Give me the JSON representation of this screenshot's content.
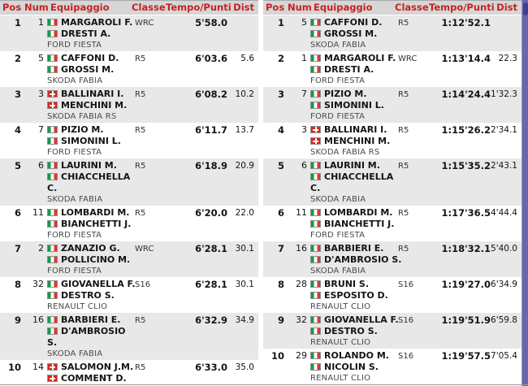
{
  "colors": {
    "header_bg": "#d6d6d6",
    "header_text": "#c5221f",
    "zebra_row_bg": "#e8e8e8",
    "car_text": "#4a4a4a",
    "scroll_strip": "#6767ad",
    "scroll_thumb": "#3f3f90",
    "italy_green": "#0f9b4a",
    "italy_red": "#d8372f",
    "swiss_red": "#d8291c"
  },
  "tables": [
    {
      "name": "stage-results-left",
      "headers": {
        "pos": "Pos",
        "num": "Num",
        "crew": "Equipaggio",
        "classe": "Classe",
        "time": "Tempo/Punti",
        "dist": "Dist"
      },
      "rows": [
        {
          "pos": "1",
          "num": "1",
          "drivers": [
            {
              "flag": "it",
              "lines": [
                "MARGAROLI F."
              ]
            },
            {
              "flag": "it",
              "lines": [
                "DRESTI A."
              ]
            }
          ],
          "car": "FORD FIESTA",
          "classe": "WRC",
          "time": "5'58.0",
          "dist": ""
        },
        {
          "pos": "2",
          "num": "5",
          "drivers": [
            {
              "flag": "it",
              "lines": [
                "CAFFONI D."
              ]
            },
            {
              "flag": "it",
              "lines": [
                "GROSSI M."
              ]
            }
          ],
          "car": "SKODA FABIA",
          "classe": "R5",
          "time": "6'03.6",
          "dist": "5.6"
        },
        {
          "pos": "3",
          "num": "3",
          "drivers": [
            {
              "flag": "ch",
              "lines": [
                "BALLINARI I."
              ]
            },
            {
              "flag": "ch",
              "lines": [
                "MENCHINI M."
              ]
            }
          ],
          "car": "SKODA FABIA RS",
          "classe": "R5",
          "time": "6'08.2",
          "dist": "10.2"
        },
        {
          "pos": "4",
          "num": "7",
          "drivers": [
            {
              "flag": "it",
              "lines": [
                "PIZIO M."
              ]
            },
            {
              "flag": "it",
              "lines": [
                "SIMONINI L."
              ]
            }
          ],
          "car": "FORD FIESTA",
          "classe": "R5",
          "time": "6'11.7",
          "dist": "13.7"
        },
        {
          "pos": "5",
          "num": "6",
          "drivers": [
            {
              "flag": "it",
              "lines": [
                "LAURINI M."
              ]
            },
            {
              "flag": "it",
              "lines": [
                "CHIACCHELLA",
                "C."
              ]
            }
          ],
          "car": "SKODA FABIA",
          "classe": "R5",
          "time": "6'18.9",
          "dist": "20.9"
        },
        {
          "pos": "6",
          "num": "11",
          "drivers": [
            {
              "flag": "it",
              "lines": [
                "LOMBARDI M."
              ]
            },
            {
              "flag": "it",
              "lines": [
                "BIANCHETTI J."
              ]
            }
          ],
          "car": "FORD FIESTA",
          "classe": "R5",
          "time": "6'20.0",
          "dist": "22.0"
        },
        {
          "pos": "7",
          "num": "2",
          "drivers": [
            {
              "flag": "it",
              "lines": [
                "ZANAZIO G."
              ]
            },
            {
              "flag": "it",
              "lines": [
                "POLLICINO M."
              ]
            }
          ],
          "car": "FORD FIESTA",
          "classe": "WRC",
          "time": "6'28.1",
          "dist": "30.1"
        },
        {
          "pos": "8",
          "num": "32",
          "drivers": [
            {
              "flag": "it",
              "lines": [
                "GIOVANELLA F."
              ]
            },
            {
              "flag": "it",
              "lines": [
                "DESTRO S."
              ]
            }
          ],
          "car": "RENAULT CLIO",
          "classe": "S16",
          "time": "6'28.1",
          "dist": "30.1"
        },
        {
          "pos": "9",
          "num": "16",
          "drivers": [
            {
              "flag": "it",
              "lines": [
                "BARBIERI E."
              ]
            },
            {
              "flag": "it",
              "lines": [
                "D'AMBROSIO",
                "S."
              ]
            }
          ],
          "car": "SKODA FABIA",
          "classe": "R5",
          "time": "6'32.9",
          "dist": "34.9"
        },
        {
          "pos": "10",
          "num": "14",
          "drivers": [
            {
              "flag": "ch",
              "lines": [
                "SALOMON J.M."
              ]
            },
            {
              "flag": "ch",
              "lines": [
                "COMMENT D."
              ]
            }
          ],
          "car": "",
          "classe": "R5",
          "time": "6'33.0",
          "dist": "35.0"
        }
      ]
    },
    {
      "name": "overall-results-right",
      "headers": {
        "pos": "Pos",
        "num": "Num",
        "crew": "Equipaggio",
        "classe": "Classe",
        "time": "Tempo/Punti",
        "dist": "Dist"
      },
      "rows": [
        {
          "pos": "1",
          "num": "5",
          "drivers": [
            {
              "flag": "it",
              "lines": [
                "CAFFONI D."
              ]
            },
            {
              "flag": "it",
              "lines": [
                "GROSSI M."
              ]
            }
          ],
          "car": "SKODA FABIA",
          "classe": "R5",
          "time": "1:12'52.1",
          "dist": ""
        },
        {
          "pos": "2",
          "num": "1",
          "drivers": [
            {
              "flag": "it",
              "lines": [
                "MARGAROLI F."
              ]
            },
            {
              "flag": "it",
              "lines": [
                "DRESTI A."
              ]
            }
          ],
          "car": "FORD FIESTA",
          "classe": "WRC",
          "time": "1:13'14.4",
          "dist": "22.3"
        },
        {
          "pos": "3",
          "num": "7",
          "drivers": [
            {
              "flag": "it",
              "lines": [
                "PIZIO M."
              ]
            },
            {
              "flag": "it",
              "lines": [
                "SIMONINI L."
              ]
            }
          ],
          "car": "FORD FIESTA",
          "classe": "R5",
          "time": "1:14'24.4",
          "dist": "1'32.3"
        },
        {
          "pos": "4",
          "num": "3",
          "drivers": [
            {
              "flag": "ch",
              "lines": [
                "BALLINARI I."
              ]
            },
            {
              "flag": "ch",
              "lines": [
                "MENCHINI M."
              ]
            }
          ],
          "car": "SKODA FABIA RS",
          "classe": "R5",
          "time": "1:15'26.2",
          "dist": "2'34.1"
        },
        {
          "pos": "5",
          "num": "6",
          "drivers": [
            {
              "flag": "it",
              "lines": [
                "LAURINI M."
              ]
            },
            {
              "flag": "it",
              "lines": [
                "CHIACCHELLA",
                "C."
              ]
            }
          ],
          "car": "SKODA FABIA",
          "classe": "R5",
          "time": "1:15'35.2",
          "dist": "2'43.1"
        },
        {
          "pos": "6",
          "num": "11",
          "drivers": [
            {
              "flag": "it",
              "lines": [
                "LOMBARDI M."
              ]
            },
            {
              "flag": "it",
              "lines": [
                "BIANCHETTI J."
              ]
            }
          ],
          "car": "FORD FIESTA",
          "classe": "R5",
          "time": "1:17'36.5",
          "dist": "4'44.4"
        },
        {
          "pos": "7",
          "num": "16",
          "drivers": [
            {
              "flag": "it",
              "lines": [
                "BARBIERI E."
              ]
            },
            {
              "flag": "it",
              "lines": [
                "D'AMBROSIO S."
              ]
            }
          ],
          "car": "SKODA FABIA",
          "classe": "R5",
          "time": "1:18'32.1",
          "dist": "5'40.0"
        },
        {
          "pos": "8",
          "num": "28",
          "drivers": [
            {
              "flag": "it",
              "lines": [
                "BRUNI S."
              ]
            },
            {
              "flag": "it",
              "lines": [
                "ESPOSITO D."
              ]
            }
          ],
          "car": "RENAULT CLIO",
          "classe": "S16",
          "time": "1:19'27.0",
          "dist": "6'34.9"
        },
        {
          "pos": "9",
          "num": "32",
          "drivers": [
            {
              "flag": "it",
              "lines": [
                "GIOVANELLA F."
              ]
            },
            {
              "flag": "it",
              "lines": [
                "DESTRO S."
              ]
            }
          ],
          "car": "RENAULT CLIO",
          "classe": "S16",
          "time": "1:19'51.9",
          "dist": "6'59.8"
        },
        {
          "pos": "10",
          "num": "29",
          "drivers": [
            {
              "flag": "it",
              "lines": [
                "ROLANDO M."
              ]
            },
            {
              "flag": "it",
              "lines": [
                "NICOLIN S."
              ]
            }
          ],
          "car": "RENAULT CLIO",
          "classe": "S16",
          "time": "1:19'57.5",
          "dist": "7'05.4"
        }
      ]
    }
  ]
}
